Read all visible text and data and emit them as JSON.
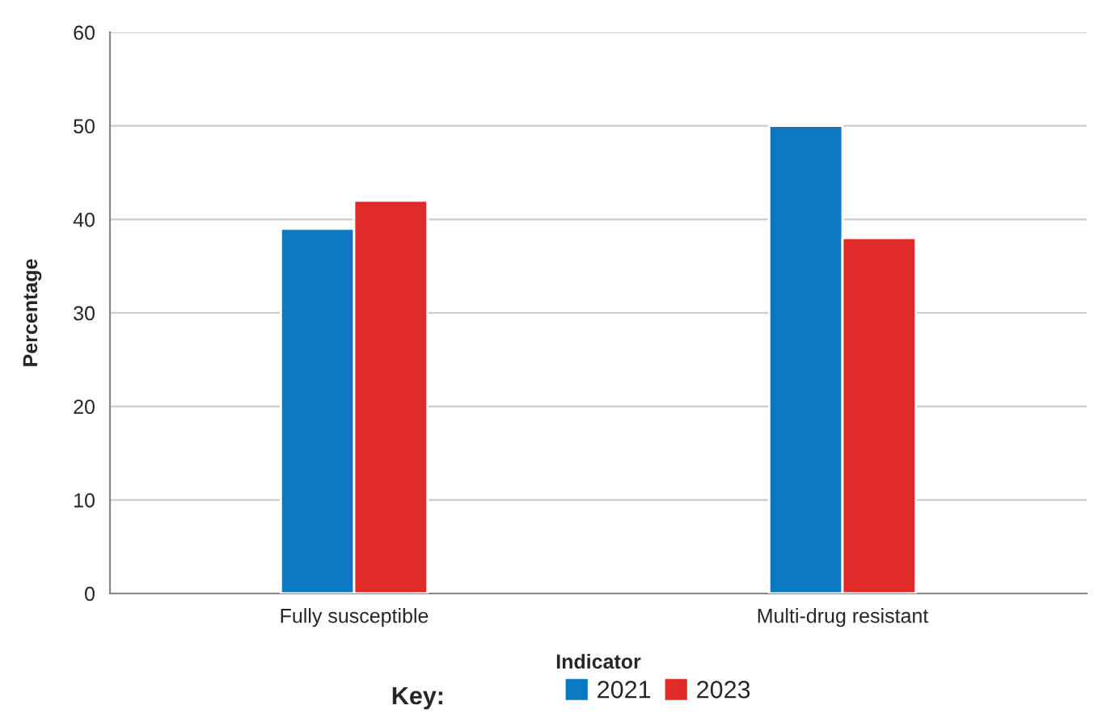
{
  "chart_data": {
    "type": "bar",
    "xlabel": "Indicator",
    "ylabel": "Percentage",
    "legend_title": "Key:",
    "categories": [
      "Fully susceptible",
      "Multi-drug resistant"
    ],
    "series": [
      {
        "name": "2021",
        "color": "#0a78c2",
        "values": [
          39,
          50
        ]
      },
      {
        "name": "2023",
        "color": "#e02a27",
        "values": [
          42,
          38
        ]
      }
    ],
    "ylim": [
      0,
      60
    ],
    "yticks": [
      0,
      10,
      20,
      30,
      40,
      50,
      60
    ],
    "grid": "y",
    "legend": "bottom"
  }
}
